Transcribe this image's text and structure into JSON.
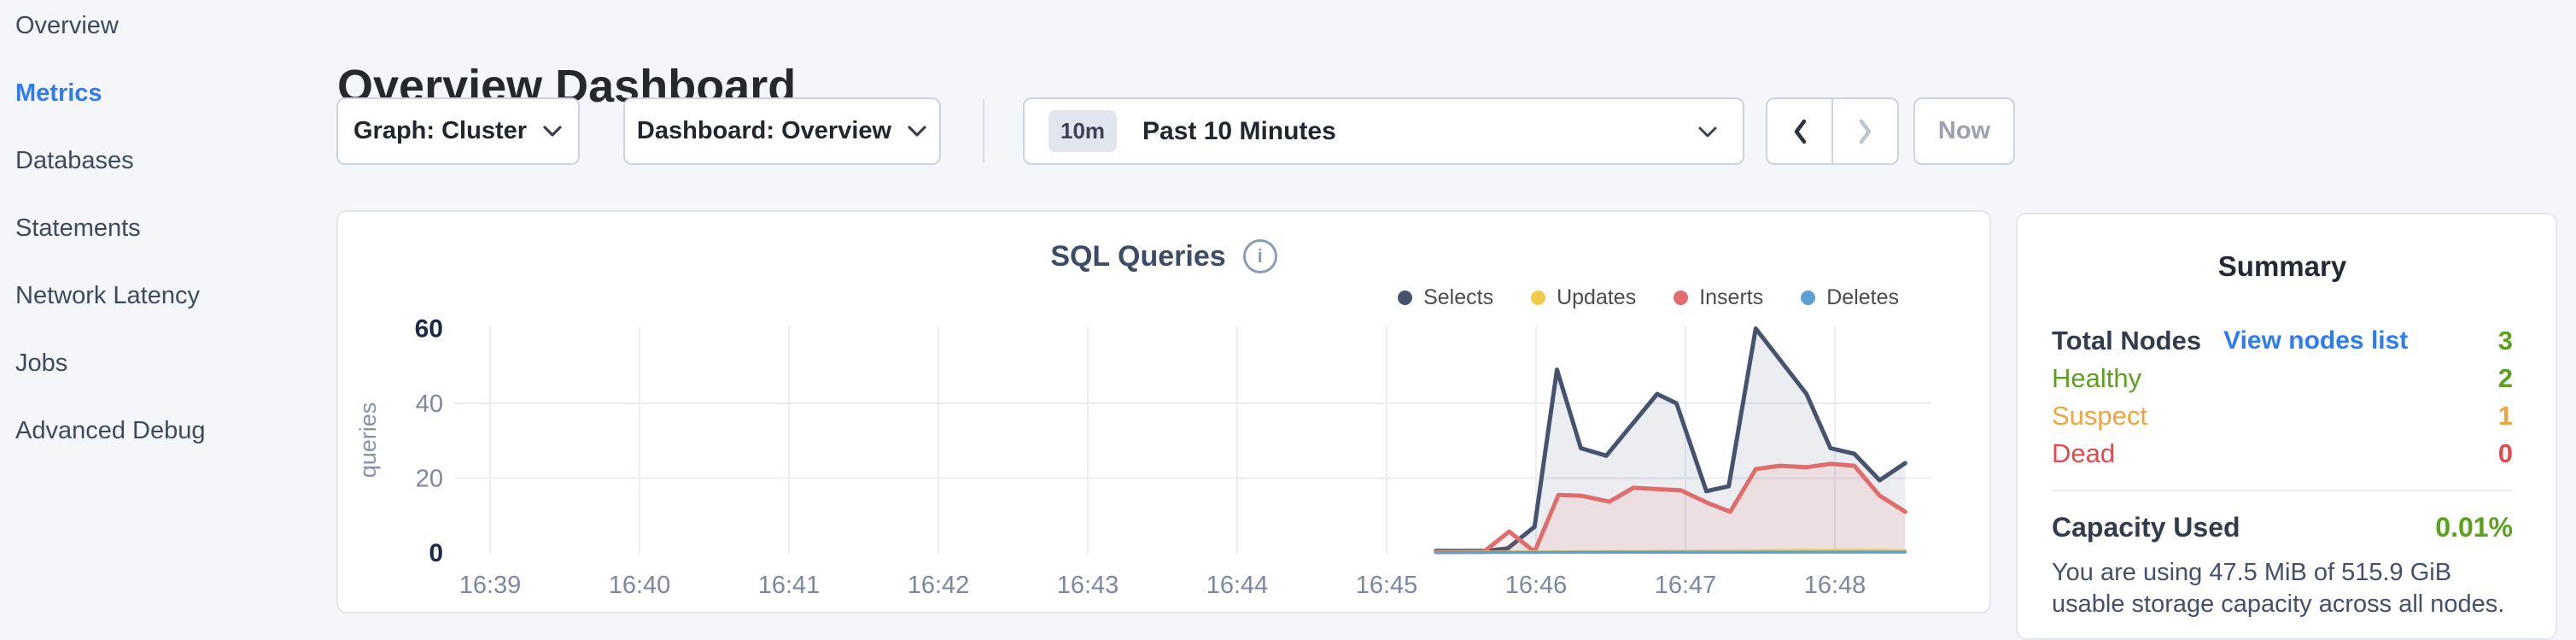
{
  "sidebar": {
    "items": [
      {
        "label": "Overview",
        "active": false
      },
      {
        "label": "Metrics",
        "active": true
      },
      {
        "label": "Databases",
        "active": false
      },
      {
        "label": "Statements",
        "active": false
      },
      {
        "label": "Network Latency",
        "active": false
      },
      {
        "label": "Jobs",
        "active": false
      },
      {
        "label": "Advanced Debug",
        "active": false
      }
    ]
  },
  "header": {
    "title": "Overview Dashboard"
  },
  "controls": {
    "graph_dropdown": {
      "value": "Graph: Cluster"
    },
    "dashboard_dropdown": {
      "value": "Dashboard: Overview"
    },
    "time_picker": {
      "badge": "10m",
      "value": "Past 10 Minutes"
    },
    "now_button": {
      "label": "Now",
      "disabled": true
    },
    "prev_enabled": true,
    "next_enabled": false
  },
  "chart_card": {
    "title": "SQL Queries",
    "info_icon": "i"
  },
  "chart_data": {
    "type": "area",
    "title": "SQL Queries",
    "ylabel": "queries",
    "ylim": [
      0,
      60
    ],
    "yticks": [
      0,
      20,
      40,
      60
    ],
    "emphasized_yticks": [
      0,
      60
    ],
    "grid_y": [
      20,
      40
    ],
    "x_unit": "minutes_after_16:39",
    "xlim": [
      0,
      9.5
    ],
    "x_tick_labels": [
      "16:39",
      "16:40",
      "16:41",
      "16:42",
      "16:43",
      "16:44",
      "16:45",
      "16:46",
      "16:47",
      "16:48"
    ],
    "legend_position": "top-right",
    "series": [
      {
        "name": "Selects",
        "color": "#46536e",
        "fill": "rgba(70,83,110,0.10)",
        "points": [
          [
            6.33,
            0.5
          ],
          [
            6.65,
            0.5
          ],
          [
            6.81,
            1.2
          ],
          [
            6.99,
            7
          ],
          [
            7.14,
            49
          ],
          [
            7.3,
            28
          ],
          [
            7.47,
            26
          ],
          [
            7.81,
            42.5
          ],
          [
            7.94,
            40
          ],
          [
            8.14,
            16.5
          ],
          [
            8.29,
            17.8
          ],
          [
            8.47,
            60
          ],
          [
            8.81,
            42.5
          ],
          [
            8.97,
            28
          ],
          [
            9.13,
            26.5
          ],
          [
            9.3,
            19.4
          ],
          [
            9.47,
            24
          ]
        ]
      },
      {
        "name": "Updates",
        "color": "#f1ca4b",
        "fill": "none",
        "points": [
          [
            6.33,
            0.15
          ],
          [
            7.2,
            0.3
          ],
          [
            8.2,
            0.5
          ],
          [
            9.0,
            0.7
          ],
          [
            9.47,
            0.6
          ]
        ]
      },
      {
        "name": "Inserts",
        "color": "#e06c6e",
        "fill": "rgba(224,108,110,0.10)",
        "points": [
          [
            6.33,
            0.2
          ],
          [
            6.65,
            0.3
          ],
          [
            6.82,
            5.7
          ],
          [
            6.99,
            0.3
          ],
          [
            7.15,
            15.5
          ],
          [
            7.3,
            15.3
          ],
          [
            7.49,
            13.7
          ],
          [
            7.65,
            17.4
          ],
          [
            7.97,
            16.7
          ],
          [
            8.15,
            13.3
          ],
          [
            8.3,
            11
          ],
          [
            8.47,
            22.4
          ],
          [
            8.63,
            23.3
          ],
          [
            8.81,
            22.9
          ],
          [
            8.97,
            23.8
          ],
          [
            9.13,
            23.3
          ],
          [
            9.3,
            15.3
          ],
          [
            9.47,
            11
          ]
        ]
      },
      {
        "name": "Deletes",
        "color": "#5c9fd4",
        "fill": "none",
        "points": [
          [
            6.33,
            0.1
          ],
          [
            7.5,
            0.15
          ],
          [
            9.47,
            0.2
          ]
        ]
      }
    ]
  },
  "summary": {
    "title": "Summary",
    "rows": [
      {
        "label": "Total Nodes",
        "link": "View nodes list",
        "value": "3",
        "color": "green"
      },
      {
        "label": "Healthy",
        "value": "2",
        "color": "green"
      },
      {
        "label": "Suspect",
        "value": "1",
        "color": "orange"
      },
      {
        "label": "Dead",
        "value": "0",
        "color": "red"
      }
    ],
    "capacity": {
      "label": "Capacity Used",
      "value": "0.01%",
      "description": "You are using 47.5 MiB of 515.9 GiB usable storage capacity across all nodes."
    }
  },
  "colors": {
    "accent_blue": "#2e7cf5",
    "healthy_green": "#5ca020",
    "suspect_orange": "#f2a33b",
    "dead_red": "#e5484d",
    "page_background": "#f4f6fa",
    "card_border": "#e3e8f0"
  }
}
